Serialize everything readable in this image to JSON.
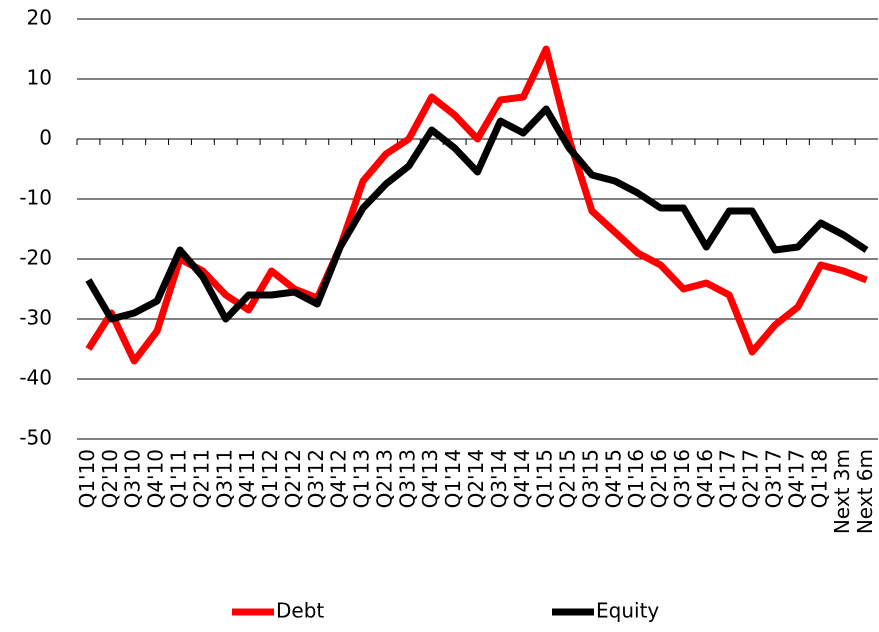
{
  "chart_data": {
    "type": "line",
    "categories": [
      "Q1'10",
      "Q2'10",
      "Q3'10",
      "Q4'10",
      "Q1'11",
      "Q2'11",
      "Q3'11",
      "Q4'11",
      "Q1'12",
      "Q2'12",
      "Q3'12",
      "Q4'12",
      "Q1'13",
      "Q2'13",
      "Q3'13",
      "Q4'13",
      "Q1'14",
      "Q2'14",
      "Q3'14",
      "Q4'14",
      "Q1'15",
      "Q2'15",
      "Q3'15",
      "Q4'15",
      "Q1'16",
      "Q2'16",
      "Q3'16",
      "Q4'16",
      "Q1'17",
      "Q2'17",
      "Q3'17",
      "Q4'17",
      "Q1'18",
      "Next 3m",
      "Next 6m"
    ],
    "series": [
      {
        "name": "Debt",
        "color": "#ff0000",
        "values": [
          -35,
          -29,
          -37,
          -32,
          -20,
          -22,
          -26,
          -28.5,
          -22,
          -25,
          -26.5,
          -18,
          -7,
          -2.5,
          0,
          7,
          4,
          0,
          6.5,
          7,
          15,
          0,
          -12,
          -15.5,
          -19,
          -21,
          -25,
          -24,
          -26,
          -35.5,
          -31,
          -28,
          -21,
          -22,
          -23.5
        ]
      },
      {
        "name": "Equity",
        "color": "#000000",
        "values": [
          -23.5,
          -30,
          -29,
          -27,
          -18.5,
          -23,
          -30,
          -26,
          -26,
          -25.5,
          -27.5,
          -18,
          -11.5,
          -7.5,
          -4.5,
          1.5,
          -1.5,
          -5.5,
          3,
          1,
          5,
          -1.5,
          -6,
          -7,
          -9,
          -11.5,
          -11.5,
          -18,
          -12,
          -12,
          -18.5,
          -18,
          -14,
          -16,
          -18.5
        ]
      }
    ],
    "ylim": [
      -50,
      20
    ],
    "yticks": [
      -50,
      -40,
      -30,
      -20,
      -10,
      0,
      10,
      20
    ],
    "grid": true,
    "legend": "bottom"
  }
}
